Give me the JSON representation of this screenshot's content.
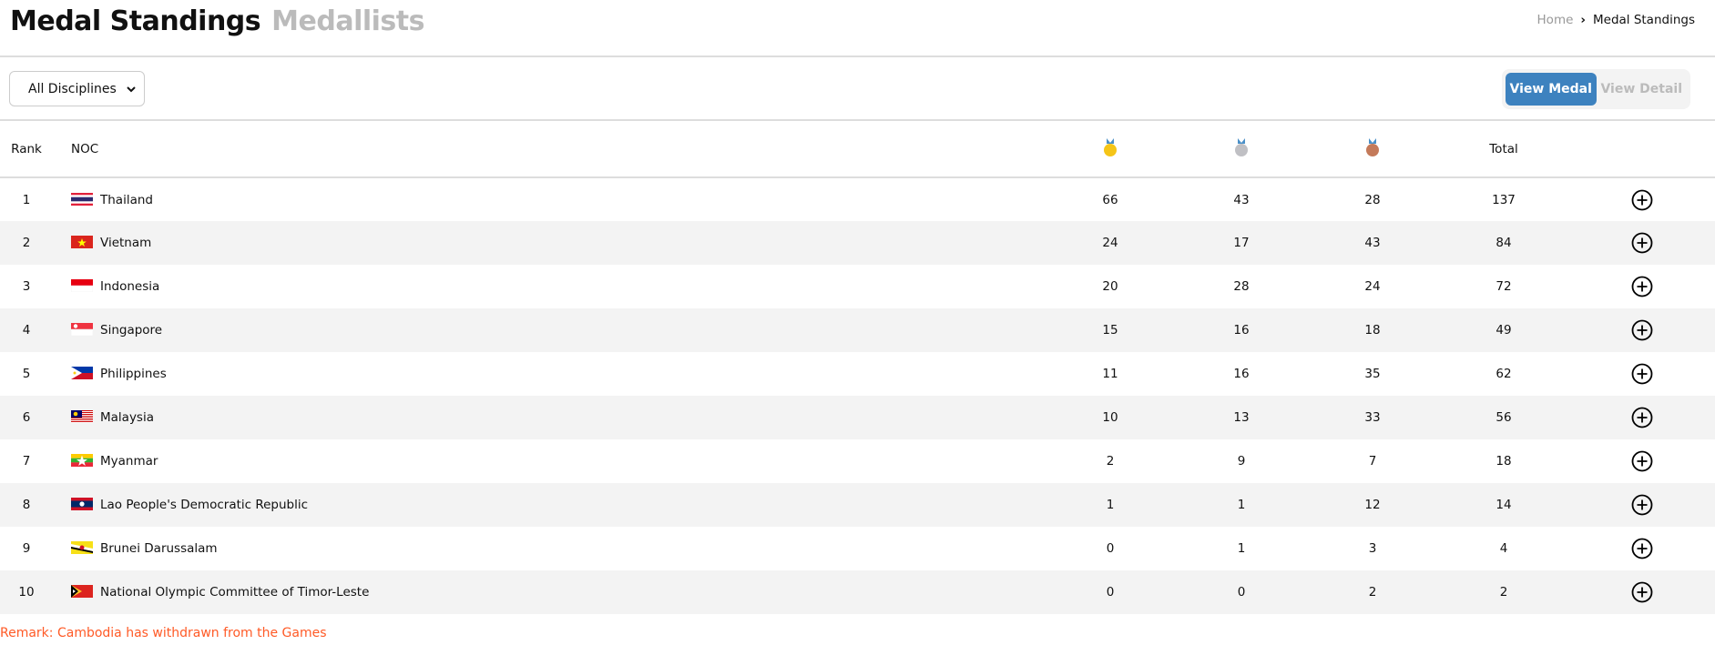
{
  "header": {
    "title": "Medal Standings",
    "subtitle": "Medallists",
    "breadcrumb": [
      "Home",
      "Medal Standings"
    ]
  },
  "filter": {
    "discipline": "All Disciplines",
    "view_medal": "View Medal",
    "view_detail": "View Detail",
    "active_view": "View Medal"
  },
  "table": {
    "columns": {
      "rank": "Rank",
      "noc": "NOC",
      "gold": "gold-medal-icon",
      "silver": "silver-medal-icon",
      "bronze": "bronze-medal-icon",
      "total": "Total"
    },
    "rows": [
      {
        "rank": "1",
        "flag": "th",
        "noc": "Thailand",
        "gold": "66",
        "silver": "43",
        "bronze": "28",
        "total": "137"
      },
      {
        "rank": "2",
        "flag": "vn",
        "noc": "Vietnam",
        "gold": "24",
        "silver": "17",
        "bronze": "43",
        "total": "84"
      },
      {
        "rank": "3",
        "flag": "id",
        "noc": "Indonesia",
        "gold": "20",
        "silver": "28",
        "bronze": "24",
        "total": "72"
      },
      {
        "rank": "4",
        "flag": "sg",
        "noc": "Singapore",
        "gold": "15",
        "silver": "16",
        "bronze": "18",
        "total": "49"
      },
      {
        "rank": "5",
        "flag": "ph",
        "noc": "Philippines",
        "gold": "11",
        "silver": "16",
        "bronze": "35",
        "total": "62"
      },
      {
        "rank": "6",
        "flag": "my",
        "noc": "Malaysia",
        "gold": "10",
        "silver": "13",
        "bronze": "33",
        "total": "56"
      },
      {
        "rank": "7",
        "flag": "mm",
        "noc": "Myanmar",
        "gold": "2",
        "silver": "9",
        "bronze": "7",
        "total": "18"
      },
      {
        "rank": "8",
        "flag": "la",
        "noc": "Lao People's Democratic Republic",
        "gold": "1",
        "silver": "1",
        "bronze": "12",
        "total": "14"
      },
      {
        "rank": "9",
        "flag": "bn",
        "noc": "Brunei Darussalam",
        "gold": "0",
        "silver": "1",
        "bronze": "3",
        "total": "4"
      },
      {
        "rank": "10",
        "flag": "tl",
        "noc": "National Olympic Committee of Timor-Leste",
        "gold": "0",
        "silver": "0",
        "bronze": "2",
        "total": "2"
      }
    ]
  },
  "remark": "Remark: Cambodia has withdrawn from the Games",
  "colors": {
    "accent": "#3d82bf",
    "remark": "#ff5a26",
    "gold": "#f5c518",
    "silver": "#c0c0c4",
    "bronze": "#c47a5a"
  }
}
